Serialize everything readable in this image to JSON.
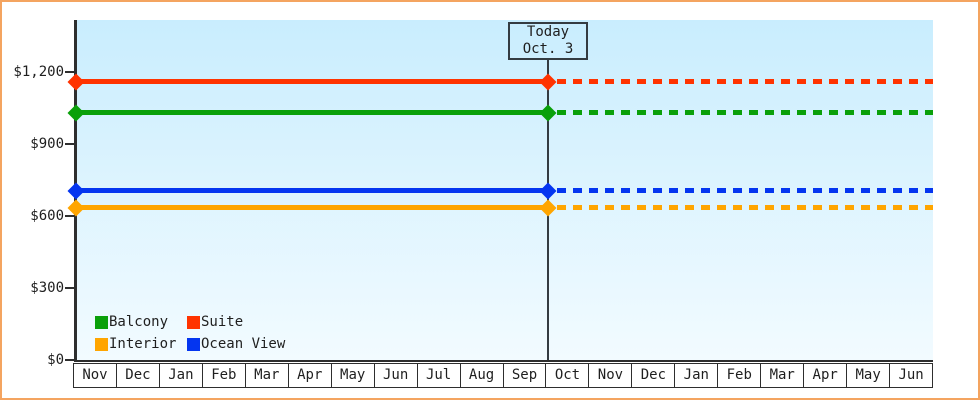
{
  "frame": {
    "border_color": "#f4a460",
    "background": "#ffffff"
  },
  "chart_data": {
    "type": "line",
    "title": "",
    "xlabel": "",
    "ylabel": "",
    "x_categories": [
      "Nov",
      "Dec",
      "Jan",
      "Feb",
      "Mar",
      "Apr",
      "May",
      "Jun",
      "Jul",
      "Aug",
      "Sep",
      "Oct",
      "Nov",
      "Dec",
      "Jan",
      "Feb",
      "Mar",
      "Apr",
      "May",
      "Jun"
    ],
    "y_ticks": [
      {
        "value": 0,
        "label": "$0"
      },
      {
        "value": 300,
        "label": "$300"
      },
      {
        "value": 600,
        "label": "$600"
      },
      {
        "value": 900,
        "label": "$900"
      },
      {
        "value": 1200,
        "label": "$1,200"
      }
    ],
    "ylim": [
      0,
      1415
    ],
    "grid": false,
    "legend_position": "bottom-left",
    "today": {
      "line1": "Today",
      "line2": "Oct. 3",
      "boundary_index": 11
    },
    "series": [
      {
        "name": "Suite",
        "color": "#ff3300",
        "value": 1160,
        "solid_before_today": true,
        "dashed_after_today": true
      },
      {
        "name": "Balcony",
        "color": "#0aa00a",
        "value": 1030,
        "solid_before_today": true,
        "dashed_after_today": true
      },
      {
        "name": "Ocean View",
        "color": "#0435f0",
        "value": 705,
        "solid_before_today": true,
        "dashed_after_today": true
      },
      {
        "name": "Interior",
        "color": "#ffa500",
        "value": 635,
        "solid_before_today": true,
        "dashed_after_today": true
      }
    ],
    "legend": [
      {
        "label": "Balcony",
        "color": "#0aa00a"
      },
      {
        "label": "Suite",
        "color": "#ff3300"
      },
      {
        "label": "Interior",
        "color": "#ffa500"
      },
      {
        "label": "Ocean View",
        "color": "#0435f0"
      }
    ],
    "style": {
      "plot_bg_top": "#c9edfe",
      "plot_bg_bottom": "#f2fbff",
      "axis_color": "#2e2e2e",
      "today_line_color": "#343b41"
    }
  }
}
